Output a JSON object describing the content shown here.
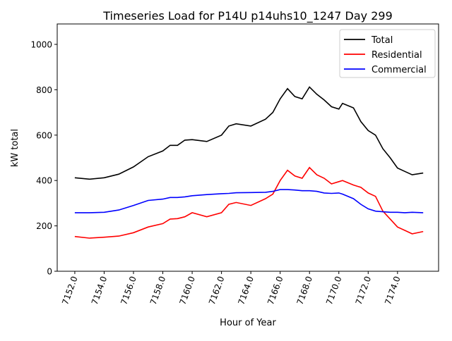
{
  "chart_data": {
    "type": "line",
    "title": "Timeseries Load for P14U p14uhs10_1247  Day 299",
    "xlabel": "Hour of Year",
    "ylabel": "kW total",
    "xlim": [
      7150.8,
      7176.8
    ],
    "ylim": [
      0,
      1090
    ],
    "xticks": [
      7152,
      7154,
      7156,
      7158,
      7160,
      7162,
      7164,
      7166,
      7168,
      7170,
      7172,
      7174
    ],
    "xtick_labels": [
      "7152.0",
      "7154.0",
      "7156.0",
      "7158.0",
      "7160.0",
      "7162.0",
      "7164.0",
      "7166.0",
      "7168.0",
      "7170.0",
      "7172.0",
      "7174.0"
    ],
    "yticks": [
      0,
      200,
      400,
      600,
      800,
      1000
    ],
    "ytick_labels": [
      "0",
      "200",
      "400",
      "600",
      "800",
      "1000"
    ],
    "grid": false,
    "legend_position": "top-right",
    "x": [
      7152,
      7153,
      7154,
      7155,
      7156,
      7157,
      7158,
      7158.5,
      7159,
      7159.5,
      7160,
      7161,
      7162,
      7162.5,
      7163,
      7164,
      7165,
      7165.5,
      7166,
      7166.5,
      7167,
      7167.5,
      7168,
      7168.5,
      7169,
      7169.5,
      7170,
      7170.25,
      7171,
      7171.5,
      7172,
      7172.5,
      7173,
      7173.5,
      7174,
      7174.5,
      7175,
      7175.75
    ],
    "series": [
      {
        "name": "Total",
        "color": "#000000",
        "values": [
          412,
          406,
          412,
          428,
          460,
          505,
          530,
          555,
          555,
          578,
          580,
          572,
          600,
          640,
          650,
          640,
          670,
          700,
          760,
          805,
          770,
          760,
          812,
          780,
          755,
          725,
          715,
          740,
          720,
          660,
          620,
          600,
          540,
          500,
          455,
          440,
          425,
          433
        ]
      },
      {
        "name": "Residential",
        "color": "#ff0000",
        "values": [
          153,
          146,
          150,
          155,
          170,
          195,
          210,
          230,
          232,
          240,
          258,
          240,
          258,
          295,
          303,
          290,
          320,
          340,
          400,
          445,
          420,
          410,
          457,
          425,
          410,
          385,
          395,
          400,
          380,
          370,
          345,
          330,
          265,
          230,
          195,
          180,
          165,
          175
        ]
      },
      {
        "name": "Commercial",
        "color": "#0000ff",
        "values": [
          258,
          258,
          260,
          270,
          290,
          312,
          318,
          325,
          325,
          328,
          333,
          338,
          342,
          343,
          346,
          347,
          348,
          352,
          360,
          360,
          358,
          355,
          355,
          352,
          345,
          343,
          345,
          340,
          320,
          295,
          275,
          265,
          262,
          260,
          260,
          258,
          260,
          258
        ]
      }
    ]
  }
}
